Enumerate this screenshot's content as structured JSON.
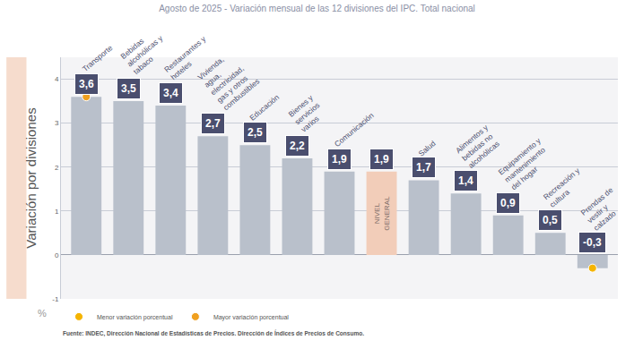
{
  "chart_data": {
    "type": "bar",
    "title": "Agosto de 2025 - Variación mensual de las 12 divisiones del IPC. Total nacional",
    "ylabel": "Variación por divisiones",
    "categories": [
      "Transporte",
      "Bebidas alcohólicas y tabaco",
      "Restaurantes y hoteles",
      "Vivienda, agua, electricidad, gas y otros combustibles",
      "Educación",
      "Bienes y servicios varios",
      "Comunicación",
      "NIVEL GENERAL",
      "Salud",
      "Alimentos y bebidas no alcohólicas",
      "Equipamiento y mantenimiento del hogar",
      "Recreación y cultura",
      "Prendas de vestir y calzado"
    ],
    "values": [
      3.6,
      3.5,
      3.4,
      2.7,
      2.5,
      2.2,
      1.9,
      1.9,
      1.7,
      1.4,
      0.9,
      0.5,
      -0.3
    ],
    "value_labels": [
      "3,6",
      "3,5",
      "3,4",
      "2,7",
      "2,5",
      "2,2",
      "1,9",
      "1,9",
      "1,7",
      "1,4",
      "0,9",
      "0,5",
      "-0,3"
    ],
    "colors": [
      "#b9c0cb",
      "#b9c0cb",
      "#b9c0cb",
      "#b9c0cb",
      "#b9c0cb",
      "#b9c0cb",
      "#b9c0cb",
      "#f2cdb9",
      "#b9c0cb",
      "#b9c0cb",
      "#b9c0cb",
      "#b9c0cb",
      "#b9c0cb"
    ],
    "series": [
      {
        "name": "Menor variación porcentual",
        "color": "#f5b400",
        "type": "scatter",
        "marker": "circle"
      },
      {
        "name": "Mayor variación porcentual",
        "color": "#f0a020",
        "type": "scatter",
        "marker": "circle"
      }
    ],
    "ylim": [
      -1,
      4.5
    ],
    "yticks": [
      -1,
      0,
      1,
      2,
      3,
      4
    ],
    "grid": true,
    "data_labels": true,
    "tick_labels": "y",
    "legend": "bottom left",
    "annotations": [
      "%",
      "Fuente: INDEC, Dirección Nacional de Estadísticas de Precios. Dirección de Índices de Precios de Consumo."
    ]
  }
}
